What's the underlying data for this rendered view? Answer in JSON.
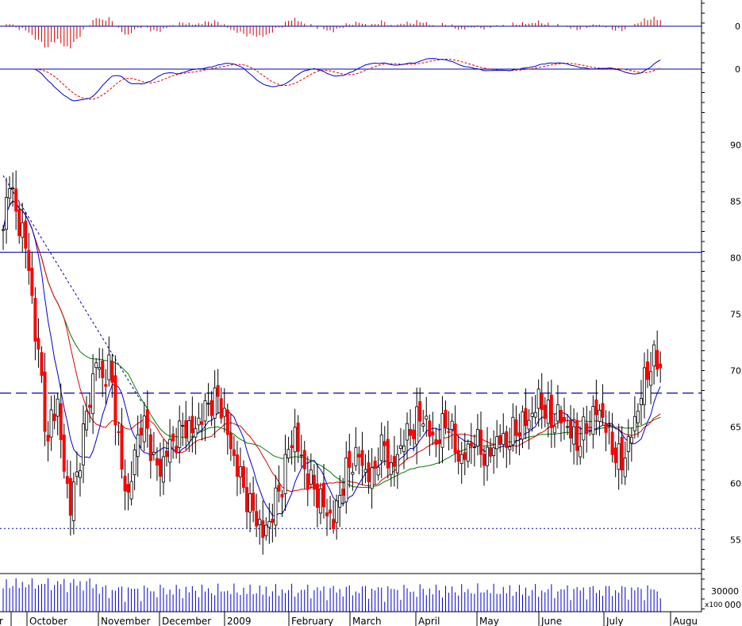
{
  "colors": {
    "up_candle": "#ffffff",
    "down_candle": "#ff0000",
    "candle_outline": "#000000",
    "ma_fast": "#0000cc",
    "ma_mid": "#e00000",
    "ma_slow": "#008000",
    "guide_line": "#0000aa",
    "hist_pos": "#cc0000",
    "hist_neg": "#cc0000",
    "osc_main": "#0000cc",
    "osc_signal": "#e00000",
    "volume": "#0000cc",
    "frame": "#000000"
  },
  "chart_data": {
    "type": "candlestick",
    "price_axis": {
      "ylim": [
        52,
        93
      ],
      "ticks": [
        55,
        60,
        65,
        70,
        75,
        80,
        85,
        90
      ],
      "tick_labels": [
        "55",
        "60",
        "65",
        "70",
        "75",
        "80",
        "85",
        "90"
      ]
    },
    "histogram_axis": {
      "zero_label": "0"
    },
    "oscillator_axis": {
      "zero_label": "0"
    },
    "volume_axis": {
      "tick_label": "30000",
      "multiplier_label": "x100",
      "zero_label": "000"
    },
    "months": [
      "ber",
      "October",
      "November",
      "December",
      "2009",
      "February",
      "March",
      "April",
      "May",
      "June",
      "July",
      "Augu"
    ],
    "horizontal_lines": {
      "resistance_solid": 80.5,
      "breakout_dashed": 68.0,
      "support_dotted": 56.0
    },
    "trendline_dashed": {
      "from": [
        0,
        87.3
      ],
      "to": [
        43,
        67.3
      ]
    },
    "price_anchors": [
      [
        0,
        82.0
      ],
      [
        2,
        87.5
      ],
      [
        4,
        83.5
      ],
      [
        6,
        82.6
      ],
      [
        8,
        79.0
      ],
      [
        10,
        73.5
      ],
      [
        12,
        69.0
      ],
      [
        14,
        63.0
      ],
      [
        15,
        66.0
      ],
      [
        17,
        67.0
      ],
      [
        19,
        61.0
      ],
      [
        21,
        58.2
      ],
      [
        23,
        60.5
      ],
      [
        25,
        64.5
      ],
      [
        27,
        67.5
      ],
      [
        29,
        71.0
      ],
      [
        31,
        69.0
      ],
      [
        33,
        70.5
      ],
      [
        35,
        66.5
      ],
      [
        37,
        61.0
      ],
      [
        39,
        58.8
      ],
      [
        41,
        62.5
      ],
      [
        43,
        65.5
      ],
      [
        45,
        64.5
      ],
      [
        47,
        62.0
      ],
      [
        49,
        61.0
      ],
      [
        51,
        63.0
      ],
      [
        53,
        63.5
      ],
      [
        55,
        64.5
      ],
      [
        57,
        65.2
      ],
      [
        59,
        64.5
      ],
      [
        61,
        65.5
      ],
      [
        63,
        66.5
      ],
      [
        65,
        67.3
      ],
      [
        67,
        67.5
      ],
      [
        69,
        66.0
      ],
      [
        71,
        63.0
      ],
      [
        73,
        61.5
      ],
      [
        75,
        59.5
      ],
      [
        77,
        58.0
      ],
      [
        79,
        57.0
      ],
      [
        81,
        55.5
      ],
      [
        83,
        56.5
      ],
      [
        85,
        58.5
      ],
      [
        87,
        60.0
      ],
      [
        89,
        63.0
      ],
      [
        91,
        64.5
      ],
      [
        93,
        62.0
      ],
      [
        95,
        60.5
      ],
      [
        97,
        59.5
      ],
      [
        99,
        58.5
      ],
      [
        101,
        57.5
      ],
      [
        103,
        56.5
      ],
      [
        105,
        59.0
      ],
      [
        107,
        61.0
      ],
      [
        109,
        62.0
      ],
      [
        111,
        62.5
      ],
      [
        113,
        61.0
      ],
      [
        115,
        60.5
      ],
      [
        117,
        62.5
      ],
      [
        119,
        63.5
      ],
      [
        121,
        61.0
      ],
      [
        123,
        62.5
      ],
      [
        125,
        64.0
      ],
      [
        127,
        64.5
      ],
      [
        129,
        65.5
      ],
      [
        131,
        66.0
      ],
      [
        133,
        64.5
      ],
      [
        135,
        63.5
      ],
      [
        137,
        65.0
      ],
      [
        139,
        65.5
      ],
      [
        141,
        63.0
      ],
      [
        143,
        62.0
      ],
      [
        145,
        63.0
      ],
      [
        147,
        64.0
      ],
      [
        149,
        63.0
      ],
      [
        151,
        62.0
      ],
      [
        153,
        63.5
      ],
      [
        155,
        64.0
      ],
      [
        157,
        63.5
      ],
      [
        159,
        64.5
      ],
      [
        161,
        65.0
      ],
      [
        163,
        65.5
      ],
      [
        165,
        66.0
      ],
      [
        167,
        67.5
      ],
      [
        169,
        66.5
      ],
      [
        171,
        65.5
      ],
      [
        173,
        66.0
      ],
      [
        175,
        65.5
      ],
      [
        177,
        64.5
      ],
      [
        179,
        63.5
      ],
      [
        181,
        64.5
      ],
      [
        183,
        65.5
      ],
      [
        185,
        66.5
      ],
      [
        187,
        66.0
      ],
      [
        189,
        64.0
      ],
      [
        191,
        62.5
      ],
      [
        193,
        61.8
      ],
      [
        195,
        63.5
      ],
      [
        197,
        65.5
      ],
      [
        199,
        68.0
      ],
      [
        201,
        70.0
      ],
      [
        203,
        71.0
      ],
      [
        205,
        70.5
      ]
    ],
    "candle_count": 206
  }
}
